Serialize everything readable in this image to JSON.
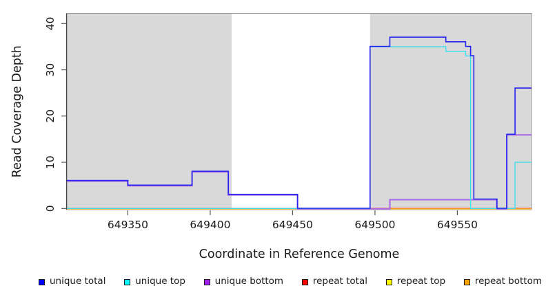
{
  "chart_data": {
    "type": "line",
    "subtype": "step-coverage",
    "title": "",
    "xlabel": "Coordinate in Reference Genome",
    "ylabel": "Read Coverage Depth",
    "xlim": [
      649313,
      649595
    ],
    "ylim": [
      0,
      40
    ],
    "x_ticks": [
      649350,
      649400,
      649450,
      649500,
      649550
    ],
    "y_ticks": [
      0,
      10,
      20,
      30,
      40
    ],
    "grid": false,
    "legend_position": "bottom",
    "plot_background": "#ffffff",
    "shaded_region_color": "#d9d9d9",
    "shaded_regions": [
      {
        "start": 649313,
        "end": 649413
      },
      {
        "start": 649497,
        "end": 649595
      }
    ],
    "series": [
      {
        "name": "repeat total",
        "line_color": "#e03030",
        "points": [
          [
            649313,
            0
          ],
          [
            649595,
            0
          ]
        ]
      },
      {
        "name": "repeat top",
        "line_color": "#efe98a",
        "points": [
          [
            649313,
            0
          ],
          [
            649595,
            0
          ]
        ]
      },
      {
        "name": "repeat bottom",
        "line_color": "#ffa020",
        "points": [
          [
            649313,
            0
          ],
          [
            649595,
            0
          ]
        ]
      },
      {
        "name": "unique bottom",
        "line_color": "#ab6ce6",
        "points": [
          [
            649313,
            6
          ],
          [
            649350,
            5
          ],
          [
            649389,
            8
          ],
          [
            649411,
            3
          ],
          [
            649453,
            0
          ],
          [
            649509,
            2
          ],
          [
            649574,
            0
          ],
          [
            649580,
            16
          ],
          [
            649595,
            16
          ]
        ]
      },
      {
        "name": "unique top",
        "line_color": "#3fdfee",
        "points": [
          [
            649313,
            0
          ],
          [
            649497,
            35
          ],
          [
            649543,
            34
          ],
          [
            649555,
            33
          ],
          [
            649558,
            0
          ],
          [
            649585,
            10
          ],
          [
            649595,
            10
          ]
        ]
      },
      {
        "name": "unique total",
        "line_color": "#2424ee",
        "points": [
          [
            649313,
            6
          ],
          [
            649350,
            5
          ],
          [
            649389,
            8
          ],
          [
            649411,
            3
          ],
          [
            649453,
            0
          ],
          [
            649497,
            35
          ],
          [
            649509,
            37
          ],
          [
            649543,
            36
          ],
          [
            649555,
            35
          ],
          [
            649558,
            33
          ],
          [
            649560,
            2
          ],
          [
            649574,
            0
          ],
          [
            649580,
            16
          ],
          [
            649585,
            26
          ],
          [
            649595,
            26
          ]
        ]
      }
    ],
    "legend": [
      {
        "label": "unique total",
        "color": "#0000ff"
      },
      {
        "label": "unique top",
        "color": "#00ffff"
      },
      {
        "label": "unique bottom",
        "color": "#a020f0"
      },
      {
        "label": "repeat total",
        "color": "#ff0000"
      },
      {
        "label": "repeat top",
        "color": "#ffff00"
      },
      {
        "label": "repeat bottom",
        "color": "#ffa500"
      }
    ],
    "axis_color": "#444444",
    "box_color": "#9a9a9a",
    "tick_color": "#555555",
    "text_color": "#1a1a1a"
  }
}
